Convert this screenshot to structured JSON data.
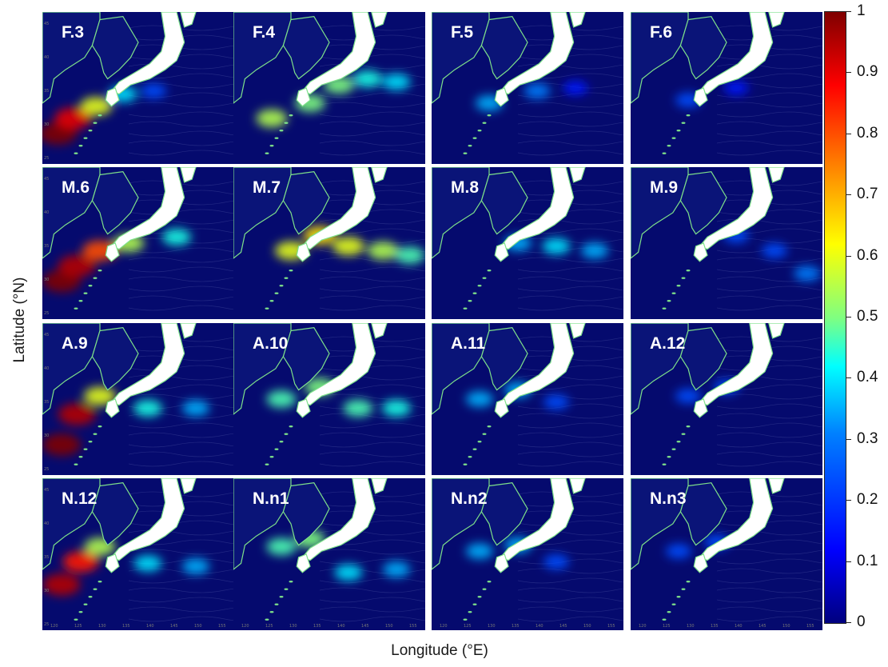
{
  "figure": {
    "y_axis_label": "Latitude (°N)",
    "x_axis_label": "Longitude (°E)",
    "colorbar": {
      "ticks": [
        "1",
        "0.9",
        "0.8",
        "0.7",
        "0.6",
        "0.5",
        "0.4",
        "0.3",
        "0.2",
        "0.1",
        "0"
      ],
      "range": [
        0,
        1
      ],
      "colormap": "jet"
    },
    "map_tick_labels": {
      "longitude": [
        "120",
        "125",
        "130",
        "135",
        "140",
        "145",
        "150",
        "155"
      ],
      "latitude": [
        "45",
        "40",
        "35",
        "30",
        "25"
      ]
    },
    "panels": [
      {
        "label": "F.3",
        "row": 0,
        "col": 0,
        "plume": [
          [
            8,
            80,
            1.0
          ],
          [
            16,
            70,
            0.9
          ],
          [
            28,
            62,
            0.6
          ],
          [
            42,
            54,
            0.35
          ],
          [
            58,
            52,
            0.2
          ]
        ]
      },
      {
        "label": "F.4",
        "row": 0,
        "col": 1,
        "plume": [
          [
            20,
            70,
            0.55
          ],
          [
            40,
            60,
            0.5
          ],
          [
            55,
            48,
            0.5
          ],
          [
            70,
            44,
            0.4
          ],
          [
            85,
            46,
            0.35
          ]
        ]
      },
      {
        "label": "F.5",
        "row": 0,
        "col": 2,
        "plume": [
          [
            30,
            60,
            0.3
          ],
          [
            55,
            52,
            0.25
          ],
          [
            75,
            50,
            0.15
          ]
        ]
      },
      {
        "label": "F.6",
        "row": 0,
        "col": 3,
        "plume": [
          [
            30,
            58,
            0.2
          ],
          [
            55,
            50,
            0.15
          ]
        ]
      },
      {
        "label": "M.6",
        "row": 1,
        "col": 0,
        "plume": [
          [
            10,
            75,
            1.0
          ],
          [
            18,
            65,
            0.95
          ],
          [
            30,
            55,
            0.8
          ],
          [
            45,
            50,
            0.55
          ],
          [
            70,
            46,
            0.4
          ]
        ]
      },
      {
        "label": "M.7",
        "row": 1,
        "col": 1,
        "plume": [
          [
            30,
            55,
            0.6
          ],
          [
            45,
            45,
            0.65
          ],
          [
            60,
            52,
            0.6
          ],
          [
            78,
            55,
            0.55
          ],
          [
            92,
            58,
            0.45
          ]
        ]
      },
      {
        "label": "M.8",
        "row": 1,
        "col": 2,
        "plume": [
          [
            45,
            50,
            0.3
          ],
          [
            65,
            52,
            0.35
          ],
          [
            85,
            55,
            0.3
          ]
        ]
      },
      {
        "label": "M.9",
        "row": 1,
        "col": 3,
        "plume": [
          [
            55,
            45,
            0.2
          ],
          [
            75,
            55,
            0.2
          ],
          [
            92,
            70,
            0.25
          ]
        ]
      },
      {
        "label": "A.9",
        "row": 2,
        "col": 0,
        "plume": [
          [
            10,
            80,
            1.0
          ],
          [
            18,
            60,
            0.95
          ],
          [
            30,
            48,
            0.6
          ],
          [
            55,
            56,
            0.4
          ],
          [
            80,
            56,
            0.3
          ]
        ]
      },
      {
        "label": "A.10",
        "row": 2,
        "col": 1,
        "plume": [
          [
            25,
            50,
            0.45
          ],
          [
            45,
            42,
            0.5
          ],
          [
            65,
            56,
            0.45
          ],
          [
            85,
            56,
            0.4
          ]
        ]
      },
      {
        "label": "A.11",
        "row": 2,
        "col": 2,
        "plume": [
          [
            25,
            50,
            0.3
          ],
          [
            45,
            44,
            0.3
          ],
          [
            65,
            52,
            0.2
          ]
        ]
      },
      {
        "label": "A.12",
        "row": 2,
        "col": 3,
        "plume": [
          [
            30,
            48,
            0.2
          ],
          [
            50,
            42,
            0.2
          ]
        ]
      },
      {
        "label": "N.12",
        "row": 3,
        "col": 0,
        "plume": [
          [
            10,
            70,
            0.95
          ],
          [
            20,
            55,
            0.85
          ],
          [
            30,
            45,
            0.55
          ],
          [
            55,
            56,
            0.35
          ],
          [
            80,
            58,
            0.3
          ]
        ]
      },
      {
        "label": "N.n1",
        "row": 3,
        "col": 1,
        "plume": [
          [
            25,
            45,
            0.45
          ],
          [
            40,
            40,
            0.5
          ],
          [
            60,
            62,
            0.35
          ],
          [
            85,
            60,
            0.3
          ]
        ]
      },
      {
        "label": "N.n2",
        "row": 3,
        "col": 2,
        "plume": [
          [
            25,
            48,
            0.3
          ],
          [
            45,
            44,
            0.3
          ],
          [
            65,
            55,
            0.2
          ]
        ]
      },
      {
        "label": "N.n3",
        "row": 3,
        "col": 3,
        "plume": [
          [
            25,
            48,
            0.2
          ],
          [
            45,
            42,
            0.2
          ]
        ]
      }
    ]
  }
}
